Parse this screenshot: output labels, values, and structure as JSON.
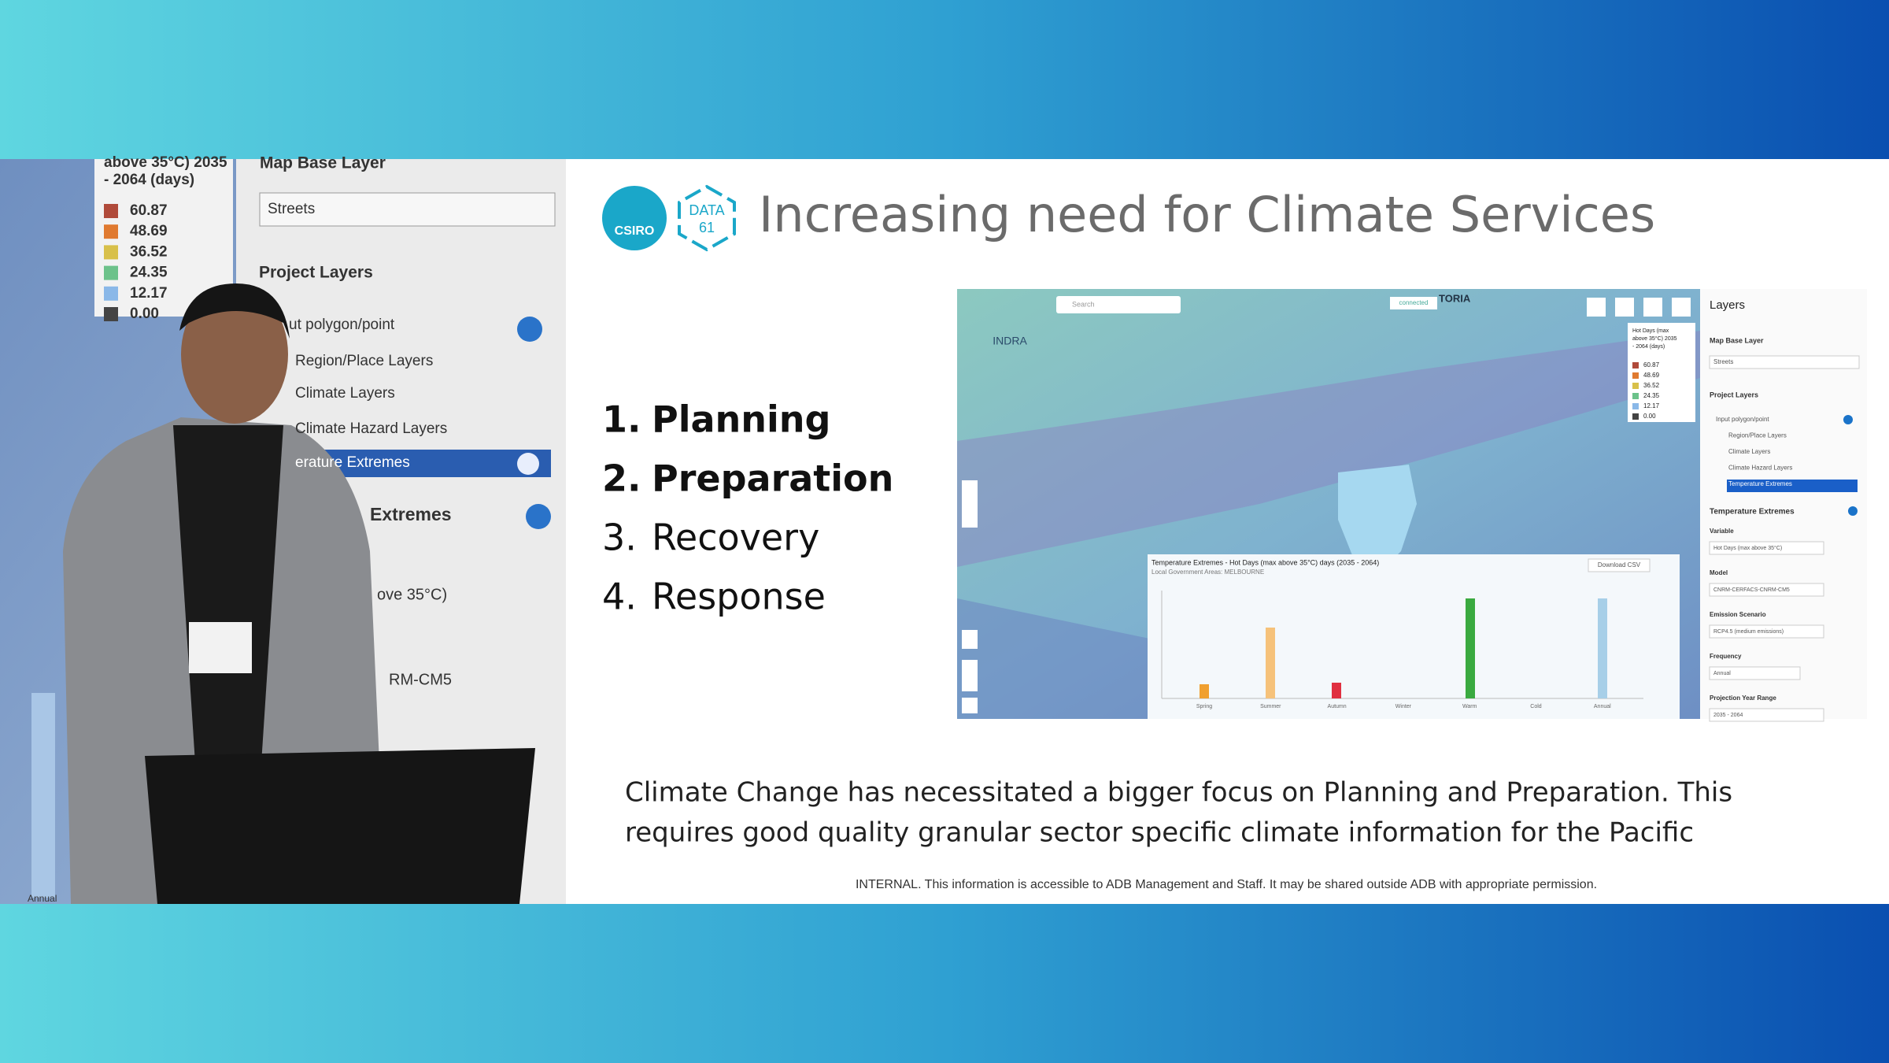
{
  "slide": {
    "title": "Increasing need for Climate Services",
    "logos": [
      "CSIRO",
      "DATA",
      "61"
    ],
    "list": [
      "1.",
      "Planning",
      "2.",
      "Preparation",
      "3.",
      "Recovery",
      "4.",
      "Response"
    ],
    "body": [
      "Climate Change has necessitated a bigger focus on Planning and Preparation. This",
      "requires good quality granular sector specific climate information for the Pacific"
    ],
    "footer": "INTERNAL. This information is accessible to ADB Management and Staff. It may be shared outside ADB with appropriate permission."
  },
  "screenshot": {
    "logo": "INDRA",
    "search": "Search",
    "status": "connected",
    "region": "TORIA",
    "legend": {
      "title": [
        "Hot Days (max",
        "above 35°C) 2035",
        "- 2064 (days)"
      ],
      "values": [
        "60.87",
        "48.69",
        "36.52",
        "24.35",
        "12.17",
        "0.00"
      ]
    },
    "popup": {
      "title": "Temperature Extremes - Hot Days (max above 35°C) days (2035 - 2064)",
      "subtitle": "Local Government Areas: MELBOURNE",
      "download": "Download CSV",
      "categories": [
        "Spring",
        "Summer",
        "Autumn",
        "Winter",
        "Warm",
        "Cold",
        "Annual"
      ]
    },
    "layers": {
      "title": "Layers",
      "base_label": "Map Base Layer",
      "base_value": "Streets",
      "project_label": "Project Layers",
      "items": [
        "Input polygon/point",
        "Region/Place Layers",
        "Climate Layers",
        "Climate Hazard Layers",
        "Temperature Extremes"
      ],
      "section": "Temperature Extremes",
      "fields": [
        {
          "label": "Variable",
          "value": "Hot Days (max above 35°C)"
        },
        {
          "label": "Model",
          "value": "CNRM-CERFACS-CNRM-CM5"
        },
        {
          "label": "Emission Scenario",
          "value": "RCP4.5 (medium emissions)"
        },
        {
          "label": "Frequency",
          "value": "Annual"
        },
        {
          "label": "Projection Year Range",
          "value": "2035 - 2064"
        }
      ]
    }
  },
  "camera": {
    "legend": {
      "title": [
        "above 35°C) 2035",
        "- 2064 (days)"
      ],
      "values": [
        "60.87",
        "48.69",
        "36.52",
        "24.35",
        "12.17",
        "0.00"
      ]
    },
    "base_label": "Map Base Layer",
    "base_value": "Streets",
    "project_label": "Project Layers",
    "items": [
      "ut polygon/point",
      "Region/Place Layers",
      "Climate Layers",
      "Climate Hazard Layers",
      "erature Extremes"
    ],
    "section": "Extremes",
    "fields": [
      "ove 35°C)",
      "RM-CM5"
    ],
    "axis_label": "Annual"
  }
}
